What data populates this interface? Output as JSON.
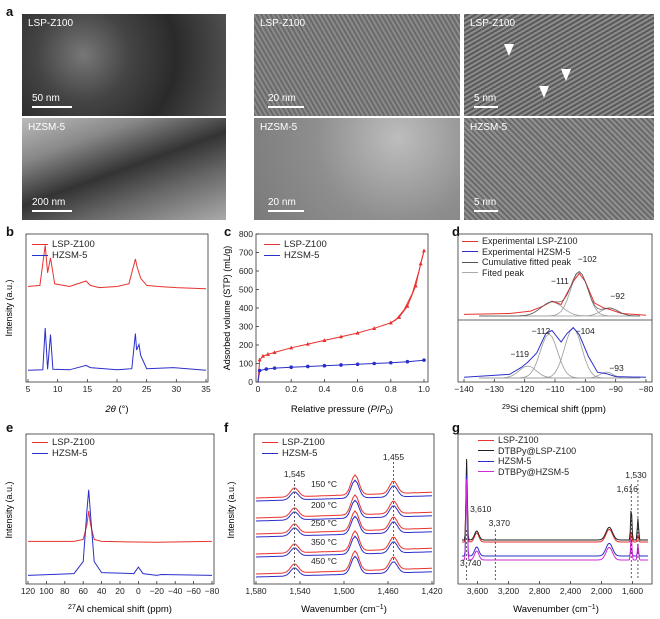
{
  "panel_letters": {
    "a": "a",
    "b": "b",
    "c": "c",
    "d": "d",
    "e": "e",
    "f": "f",
    "g": "g"
  },
  "panel_a": {
    "images": [
      {
        "label": "LSP-Z100",
        "scale": "50 nm"
      },
      {
        "label": "LSP-Z100",
        "scale": "20 nm"
      },
      {
        "label": "LSP-Z100",
        "scale": "5 nm"
      },
      {
        "label": "HZSM-5",
        "scale": "200 nm"
      },
      {
        "label": "HZSM-5",
        "scale": "20 nm"
      },
      {
        "label": "HZSM-5",
        "scale": "5 nm"
      }
    ]
  },
  "colors": {
    "red": "#e8322f",
    "blue": "#2b2fc9",
    "black": "#222222",
    "magenta": "#d02ad6",
    "grey": "#9a9a9a"
  },
  "chart_data": [
    {
      "panel": "b",
      "type": "line",
      "xlabel": "2θ (°)",
      "ylabel": "Intensity (a.u.)",
      "xticks": [
        "5",
        "10",
        "15",
        "20",
        "25",
        "30",
        "35"
      ],
      "xlim": [
        5,
        35
      ],
      "legend": [
        "LSP-Z100",
        "HZSM-5"
      ],
      "series": [
        {
          "name": "LSP-Z100",
          "x": [
            5,
            7,
            7.9,
            8.3,
            8.8,
            9.5,
            12,
            14.8,
            15.5,
            17,
            20,
            22,
            23.1,
            23.4,
            24,
            25,
            27,
            30,
            35
          ],
          "y": [
            0.1,
            0.12,
            0.85,
            0.35,
            0.62,
            0.15,
            0.1,
            0.2,
            0.12,
            0.08,
            0.1,
            0.15,
            0.6,
            0.45,
            0.25,
            0.12,
            0.1,
            0.08,
            0.06
          ]
        },
        {
          "name": "HZSM-5",
          "x": [
            5,
            7.5,
            7.9,
            8.3,
            8.8,
            9.2,
            12,
            14.8,
            15.5,
            20,
            22.5,
            23.1,
            23.3,
            23.7,
            24,
            25,
            29.5,
            35
          ],
          "y": [
            0.03,
            0.04,
            0.8,
            0.05,
            0.68,
            0.05,
            0.04,
            0.12,
            0.08,
            0.04,
            0.06,
            0.7,
            0.4,
            0.5,
            0.3,
            0.06,
            0.08,
            0.03
          ]
        }
      ]
    },
    {
      "panel": "c",
      "type": "line",
      "xlabel": "Relative pressure (P/P",
      "xlabel_sub": "0",
      "xlabel_end": ")",
      "ylabel": "Adsorbed volume (STP) (mL/g)",
      "xlim": [
        0,
        1
      ],
      "ylim": [
        0,
        800
      ],
      "xticks": [
        "0",
        "0.2",
        "0.4",
        "0.6",
        "0.8",
        "1.0"
      ],
      "yticks": [
        "0",
        "100",
        "200",
        "300",
        "400",
        "500",
        "600",
        "700",
        "800"
      ],
      "legend": [
        "LSP-Z100",
        "HZSM-5"
      ],
      "series": [
        {
          "name": "LSP-Z100",
          "x": [
            0,
            0.01,
            0.03,
            0.06,
            0.1,
            0.2,
            0.3,
            0.4,
            0.5,
            0.6,
            0.7,
            0.8,
            0.85,
            0.9,
            0.95,
            0.98,
            1.0
          ],
          "y": [
            0,
            120,
            140,
            150,
            160,
            185,
            205,
            225,
            245,
            265,
            290,
            320,
            350,
            410,
            520,
            640,
            710
          ]
        },
        {
          "name": "HZSM-5",
          "x": [
            0,
            0.01,
            0.05,
            0.1,
            0.2,
            0.3,
            0.4,
            0.5,
            0.6,
            0.7,
            0.8,
            0.9,
            1.0
          ],
          "y": [
            0,
            62,
            70,
            75,
            80,
            84,
            88,
            92,
            96,
            100,
            104,
            110,
            118
          ]
        }
      ]
    },
    {
      "panel": "d",
      "type": "line",
      "xlabel": "29Si chemical shift (ppm)",
      "xlabel_sup": "29",
      "xlabel_rest": "Si chemical shift (ppm)",
      "xlim": [
        -140,
        -80
      ],
      "xticks": [
        "−140",
        "−130",
        "−120",
        "−110",
        "−100",
        "−90",
        "−80"
      ],
      "legend": [
        "Experimental LSP-Z100",
        "Experimental HZSM-5",
        "Cumulative fitted peak",
        "Fited peak"
      ],
      "annotations": [
        "−102",
        "−111",
        "−92",
        "−104",
        "−112",
        "−119",
        "−93"
      ],
      "series": [
        {
          "name": "Experimental LSP-Z100",
          "x": [
            -140,
            -125,
            -118,
            -114,
            -111,
            -108,
            -104,
            -102,
            -100,
            -97,
            -94,
            -92,
            -88,
            -80
          ],
          "y": [
            0.02,
            0.03,
            0.06,
            0.12,
            0.18,
            0.14,
            0.42,
            0.52,
            0.42,
            0.16,
            0.1,
            0.08,
            0.03,
            0.01
          ]
        },
        {
          "name": "Experimental HZSM-5",
          "x": [
            -140,
            -125,
            -121,
            -119,
            -116,
            -113,
            -111,
            -108,
            -106,
            -104,
            -102,
            -99,
            -96,
            -93,
            -90,
            -80
          ],
          "y": [
            0.01,
            0.05,
            0.15,
            0.22,
            0.35,
            0.62,
            0.66,
            0.5,
            0.62,
            0.7,
            0.6,
            0.3,
            0.08,
            0.06,
            0.02,
            0.01
          ]
        }
      ]
    },
    {
      "panel": "e",
      "type": "line",
      "xlabel": "27Al chemical shift (ppm)",
      "xlabel_sup": "27",
      "xlabel_rest": "Al chemical shift (ppm)",
      "ylabel": "Intensity (a.u.)",
      "xlim": [
        120,
        -80
      ],
      "xticks": [
        "120",
        "100",
        "80",
        "60",
        "40",
        "20",
        "0",
        "−20",
        "−40",
        "−60",
        "−80"
      ],
      "legend": [
        "LSP-Z100",
        "HZSM-5"
      ],
      "series": [
        {
          "name": "LSP-Z100",
          "x": [
            120,
            70,
            60,
            56,
            54,
            52,
            48,
            40,
            -20,
            -80
          ],
          "y": [
            0.42,
            0.42,
            0.44,
            0.6,
            0.75,
            0.6,
            0.44,
            0.42,
            0.41,
            0.42
          ]
        },
        {
          "name": "HZSM-5",
          "x": [
            120,
            70,
            60,
            56,
            54,
            52,
            48,
            40,
            5,
            0,
            -5,
            -20,
            -25,
            -80
          ],
          "y": [
            0.05,
            0.07,
            0.2,
            0.75,
            0.98,
            0.7,
            0.2,
            0.08,
            0.07,
            0.14,
            0.07,
            0.05,
            0.06,
            0.05
          ]
        }
      ]
    },
    {
      "panel": "f",
      "type": "line",
      "xlabel": "Wavenumber (cm",
      "xlabel_sup": "−1",
      "xlabel_end": ")",
      "ylabel": "Intensity (a.u.)",
      "xlim": [
        1580,
        1420
      ],
      "xticks": [
        "1,580",
        "1,540",
        "1,500",
        "1,460",
        "1,420"
      ],
      "legend": [
        "LSP-Z100",
        "HZSM-5"
      ],
      "annotations": [
        "1,545",
        "1,455",
        "150 °C",
        "200 °C",
        "250 °C",
        "350 °C",
        "450 °C"
      ]
    },
    {
      "panel": "g",
      "type": "line",
      "xlabel": "Wavenumber (cm",
      "xlabel_sup": "−1",
      "xlabel_end": ")",
      "xlim": [
        3800,
        1400
      ],
      "xticks": [
        "3,600",
        "3,200",
        "2,800",
        "2,400",
        "2,000",
        "1,600"
      ],
      "legend": [
        "LSP-Z100",
        "DTBPy@LSP-Z100",
        "HZSM-5",
        "DTBPy@HZSM-5"
      ],
      "annotations": [
        "3,610",
        "3,370",
        "3,740",
        "1,616",
        "1,530"
      ]
    }
  ]
}
